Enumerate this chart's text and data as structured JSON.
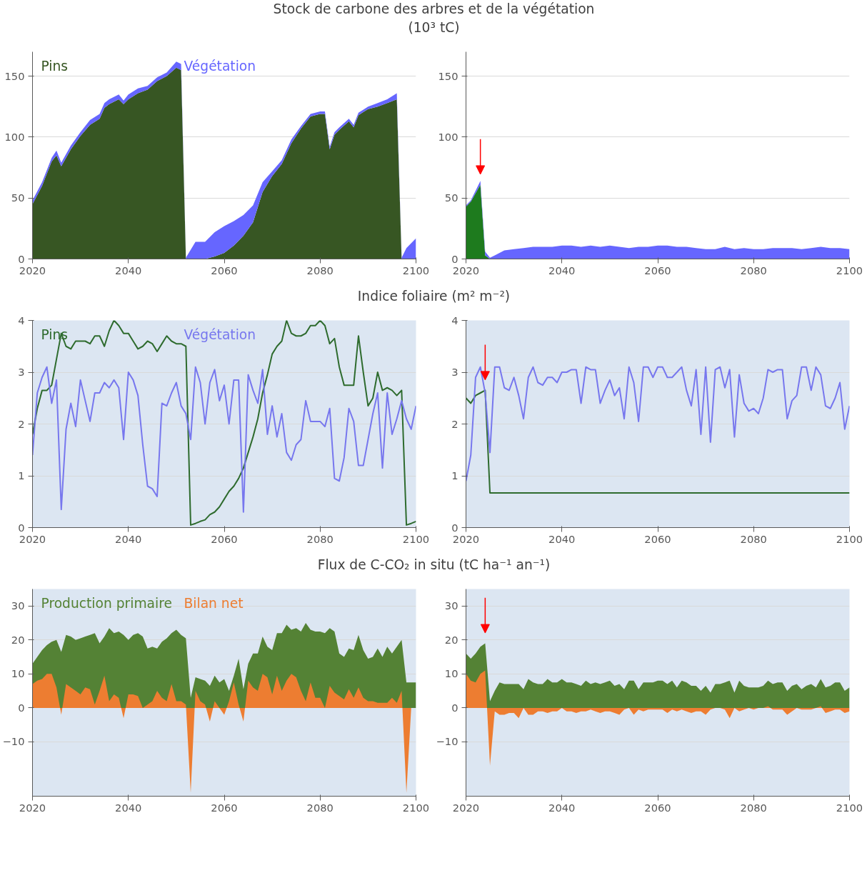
{
  "chart_data": [
    {
      "type": "area",
      "title": "Stock de carbone des arbres et de la végétation",
      "subtitle": "(10³ tC)",
      "stacked": true,
      "grid": "y",
      "xlim": [
        2020,
        2100
      ],
      "xticks": [
        2020,
        2040,
        2060,
        2080,
        2100
      ],
      "ylim": [
        0,
        170
      ],
      "yticks": [
        0,
        50,
        100,
        150
      ],
      "x": [
        2020,
        2022,
        2024,
        2025,
        2026,
        2028,
        2030,
        2032,
        2034,
        2035,
        2036,
        2038,
        2039,
        2040,
        2042,
        2044,
        2046,
        2048,
        2050,
        2051,
        2052,
        2054,
        2056,
        2058,
        2060,
        2062,
        2064,
        2066,
        2068,
        2070,
        2072,
        2074,
        2076,
        2078,
        2080,
        2081,
        2082,
        2083,
        2084,
        2086,
        2087,
        2088,
        2090,
        2092,
        2094,
        2096,
        2097,
        2098,
        2100
      ],
      "series": [
        {
          "name": "Pins",
          "color": "#375623",
          "values": [
            45,
            60,
            80,
            85,
            76,
            90,
            101,
            110,
            115,
            124,
            127,
            131,
            127,
            131,
            136,
            139,
            146,
            150,
            157,
            155,
            0,
            0,
            0,
            2,
            5,
            11,
            19,
            30,
            55,
            68,
            78,
            95,
            107,
            117,
            119,
            119,
            90,
            102,
            106,
            113,
            108,
            118,
            123,
            125,
            128,
            131,
            0,
            0,
            0
          ]
        },
        {
          "name": "Végétation",
          "color": "#6666ff",
          "values": [
            3,
            3,
            3,
            4,
            3,
            3,
            3,
            4,
            4,
            4,
            4,
            4,
            3,
            4,
            4,
            3,
            3,
            3,
            5,
            5,
            1,
            14,
            14,
            20,
            22,
            20,
            17,
            14,
            8,
            4,
            3,
            3,
            2,
            2,
            2,
            2,
            2,
            2,
            2,
            2,
            2,
            2,
            2,
            3,
            3,
            5,
            1,
            9,
            17
          ]
        }
      ]
    },
    {
      "type": "area",
      "stacked": true,
      "grid": "y",
      "xlim": [
        2020,
        2100
      ],
      "xticks": [
        2020,
        2040,
        2060,
        2080,
        2100
      ],
      "ylim": [
        0,
        170
      ],
      "yticks": [
        0,
        50,
        100,
        150
      ],
      "x": [
        2020,
        2021,
        2022,
        2023,
        2024,
        2025,
        2026,
        2028,
        2030,
        2032,
        2034,
        2036,
        2038,
        2040,
        2042,
        2044,
        2046,
        2048,
        2050,
        2052,
        2054,
        2056,
        2058,
        2060,
        2062,
        2064,
        2066,
        2068,
        2070,
        2072,
        2074,
        2076,
        2078,
        2080,
        2082,
        2084,
        2086,
        2088,
        2090,
        2092,
        2094,
        2096,
        2098,
        2100
      ],
      "series": [
        {
          "color": "#1e7b1e",
          "values": [
            43,
            47,
            54,
            61,
            3,
            0,
            0,
            0,
            0,
            0,
            0,
            0,
            0,
            0,
            0,
            0,
            0,
            0,
            0,
            0,
            0,
            0,
            0,
            0,
            0,
            0,
            0,
            0,
            0,
            0,
            0,
            0,
            0,
            0,
            0,
            0,
            0,
            0,
            0,
            0,
            0,
            0,
            0,
            0
          ]
        },
        {
          "color": "#6666ff",
          "values": [
            1,
            1,
            2,
            3,
            3,
            1,
            3,
            7,
            8,
            9,
            10,
            10,
            10,
            11,
            11,
            10,
            11,
            10,
            11,
            10,
            9,
            10,
            10,
            11,
            11,
            10,
            10,
            9,
            8,
            8,
            10,
            8,
            9,
            8,
            8,
            9,
            9,
            9,
            8,
            9,
            10,
            9,
            9,
            8
          ]
        }
      ]
    },
    {
      "type": "line",
      "title": "Indice foliaire (m² m⁻²)",
      "grid": "y",
      "xlim": [
        2020,
        2100
      ],
      "xticks": [
        2020,
        2040,
        2060,
        2080,
        2100
      ],
      "ylim": [
        0,
        4
      ],
      "yticks": [
        0,
        1,
        2,
        3,
        4
      ],
      "x": [
        2020,
        2021,
        2022,
        2023,
        2024,
        2025,
        2026,
        2027,
        2028,
        2029,
        2030,
        2031,
        2032,
        2033,
        2034,
        2035,
        2036,
        2037,
        2038,
        2039,
        2040,
        2041,
        2042,
        2043,
        2044,
        2045,
        2046,
        2047,
        2048,
        2049,
        2050,
        2051,
        2052,
        2053,
        2054,
        2055,
        2056,
        2057,
        2058,
        2059,
        2060,
        2061,
        2062,
        2063,
        2064,
        2065,
        2066,
        2067,
        2068,
        2069,
        2070,
        2071,
        2072,
        2073,
        2074,
        2075,
        2076,
        2077,
        2078,
        2079,
        2080,
        2081,
        2082,
        2083,
        2084,
        2085,
        2086,
        2087,
        2088,
        2089,
        2090,
        2091,
        2092,
        2093,
        2094,
        2095,
        2096,
        2097,
        2098,
        2099,
        2100
      ],
      "series": [
        {
          "name": "Pins",
          "color": "#2e6b2e",
          "values": [
            1.8,
            2.3,
            2.65,
            2.65,
            2.75,
            3.25,
            3.75,
            3.5,
            3.45,
            3.6,
            3.6,
            3.6,
            3.55,
            3.7,
            3.7,
            3.5,
            3.8,
            4.0,
            3.9,
            3.75,
            3.75,
            3.6,
            3.45,
            3.5,
            3.6,
            3.55,
            3.4,
            3.55,
            3.7,
            3.6,
            3.55,
            3.55,
            3.5,
            0.05,
            0.08,
            0.12,
            0.15,
            0.25,
            0.3,
            0.4,
            0.55,
            0.7,
            0.8,
            0.95,
            1.15,
            1.45,
            1.75,
            2.1,
            2.6,
            2.95,
            3.35,
            3.5,
            3.6,
            4.0,
            3.75,
            3.7,
            3.7,
            3.75,
            3.9,
            3.9,
            4.0,
            3.9,
            3.55,
            3.65,
            3.1,
            2.75,
            2.75,
            2.75,
            3.7,
            3.0,
            2.35,
            2.5,
            3.0,
            2.65,
            2.7,
            2.65,
            2.55,
            2.65,
            0.05,
            0.08,
            0.12
          ]
        },
        {
          "name": "Végétation",
          "color": "#7777ee",
          "values": [
            1.4,
            2.6,
            2.9,
            3.1,
            2.4,
            2.85,
            0.35,
            1.9,
            2.4,
            1.95,
            2.85,
            2.45,
            2.05,
            2.6,
            2.6,
            2.8,
            2.7,
            2.85,
            2.7,
            1.7,
            3.0,
            2.85,
            2.55,
            1.6,
            0.8,
            0.75,
            0.6,
            2.4,
            2.35,
            2.6,
            2.8,
            2.35,
            2.2,
            1.7,
            3.1,
            2.8,
            2.0,
            2.8,
            3.05,
            2.45,
            2.75,
            2.0,
            2.85,
            2.85,
            0.3,
            2.95,
            2.65,
            2.4,
            3.05,
            1.8,
            2.35,
            1.75,
            2.2,
            1.45,
            1.3,
            1.6,
            1.7,
            2.45,
            2.05,
            2.05,
            2.05,
            1.95,
            2.3,
            0.95,
            0.9,
            1.35,
            2.3,
            2.05,
            1.2,
            1.2,
            1.7,
            2.2,
            2.6,
            1.15,
            2.6,
            1.8,
            2.1,
            2.45,
            2.1,
            1.9,
            2.35
          ]
        }
      ]
    },
    {
      "type": "line",
      "grid": "y",
      "xlim": [
        2020,
        2100
      ],
      "xticks": [
        2020,
        2040,
        2060,
        2080,
        2100
      ],
      "ylim": [
        0,
        4
      ],
      "yticks": [
        0,
        1,
        2,
        3,
        4
      ],
      "x": [
        2020,
        2021,
        2022,
        2023,
        2024,
        2025,
        2026,
        2027,
        2028,
        2029,
        2030,
        2031,
        2032,
        2033,
        2034,
        2035,
        2036,
        2037,
        2038,
        2039,
        2040,
        2041,
        2042,
        2043,
        2044,
        2045,
        2046,
        2047,
        2048,
        2049,
        2050,
        2051,
        2052,
        2053,
        2054,
        2055,
        2056,
        2057,
        2058,
        2059,
        2060,
        2061,
        2062,
        2063,
        2064,
        2065,
        2066,
        2067,
        2068,
        2069,
        2070,
        2071,
        2072,
        2073,
        2074,
        2075,
        2076,
        2077,
        2078,
        2079,
        2080,
        2081,
        2082,
        2083,
        2084,
        2085,
        2086,
        2087,
        2088,
        2089,
        2090,
        2091,
        2092,
        2093,
        2094,
        2095,
        2096,
        2097,
        2098,
        2099,
        2100
      ],
      "series": [
        {
          "color": "#2e6b2e",
          "x": [
            2020,
            2021,
            2022,
            2023,
            2024,
            2025,
            2100
          ],
          "values": [
            2.5,
            2.4,
            2.55,
            2.6,
            2.65,
            0.67,
            0.67
          ]
        },
        {
          "color": "#7777ee",
          "values": [
            0.9,
            1.4,
            2.9,
            3.1,
            2.6,
            1.45,
            3.1,
            3.1,
            2.7,
            2.65,
            2.9,
            2.55,
            2.1,
            2.9,
            3.1,
            2.8,
            2.75,
            2.9,
            2.9,
            2.8,
            3.0,
            3.0,
            3.05,
            3.05,
            2.4,
            3.1,
            3.05,
            3.05,
            2.4,
            2.65,
            2.85,
            2.55,
            2.7,
            2.1,
            3.1,
            2.8,
            2.05,
            3.1,
            3.1,
            2.9,
            3.1,
            3.1,
            2.9,
            2.9,
            3.0,
            3.1,
            2.65,
            2.35,
            3.05,
            1.8,
            3.1,
            1.65,
            3.05,
            3.1,
            2.7,
            3.05,
            1.75,
            2.95,
            2.4,
            2.25,
            2.3,
            2.2,
            2.5,
            3.05,
            3.0,
            3.05,
            3.05,
            2.1,
            2.45,
            2.55,
            3.1,
            3.1,
            2.65,
            3.1,
            2.95,
            2.35,
            2.3,
            2.5,
            2.8,
            1.9,
            2.35
          ]
        }
      ]
    },
    {
      "type": "area",
      "title": "Flux de C-CO₂ in situ (tC ha⁻¹ an⁻¹)",
      "grid": "y",
      "xlim": [
        2020,
        2100
      ],
      "xticks": [
        2020,
        2040,
        2060,
        2080,
        2100
      ],
      "ylim": [
        -26,
        35
      ],
      "yticks": [
        -10,
        0,
        10,
        20,
        30
      ],
      "x": [
        2020,
        2021,
        2022,
        2023,
        2024,
        2025,
        2026,
        2027,
        2028,
        2029,
        2030,
        2031,
        2032,
        2033,
        2034,
        2035,
        2036,
        2037,
        2038,
        2039,
        2040,
        2041,
        2042,
        2043,
        2044,
        2045,
        2046,
        2047,
        2048,
        2049,
        2050,
        2051,
        2052,
        2053,
        2054,
        2055,
        2056,
        2057,
        2058,
        2059,
        2060,
        2061,
        2062,
        2063,
        2064,
        2065,
        2066,
        2067,
        2068,
        2069,
        2070,
        2071,
        2072,
        2073,
        2074,
        2075,
        2076,
        2077,
        2078,
        2079,
        2080,
        2081,
        2082,
        2083,
        2084,
        2085,
        2086,
        2087,
        2088,
        2089,
        2090,
        2091,
        2092,
        2093,
        2094,
        2095,
        2096,
        2097,
        2098,
        2099,
        2100
      ],
      "series": [
        {
          "name": "Production primaire",
          "color": "#548235",
          "values": [
            13,
            15,
            17,
            18.5,
            19.5,
            20,
            16.5,
            21.5,
            21,
            20,
            20.5,
            21,
            21.5,
            22,
            19,
            21,
            23.5,
            22,
            22.5,
            21.5,
            20,
            21.5,
            22,
            21,
            17.5,
            18,
            17.5,
            19.5,
            20.5,
            22,
            23,
            21.5,
            20.5,
            3,
            9,
            8.5,
            8,
            6.5,
            9.5,
            7.5,
            8.5,
            5,
            9.5,
            14.5,
            5.5,
            13,
            16,
            16,
            21,
            18,
            17,
            22,
            22,
            24.5,
            23,
            23.5,
            22.5,
            25,
            23,
            22.5,
            22.5,
            22,
            23.5,
            22.5,
            16,
            15,
            17.5,
            17,
            21.5,
            17,
            14.5,
            15,
            17.5,
            15,
            18,
            16,
            18,
            20,
            7.5,
            7.5,
            7.5
          ]
        },
        {
          "name": "Bilan net",
          "color": "#ed7d31",
          "values": [
            7,
            8,
            8.5,
            10,
            10,
            6,
            -2,
            7,
            6,
            5,
            4,
            6,
            5.5,
            1,
            5,
            9.5,
            2,
            4,
            3,
            -3,
            4,
            4,
            3.5,
            0,
            1,
            2,
            5,
            3,
            2,
            7,
            2,
            2,
            1,
            -25,
            5,
            2,
            1,
            -4,
            2,
            0,
            -2,
            2,
            7.5,
            1,
            -4,
            8,
            6,
            5,
            10,
            9,
            4,
            9.5,
            5,
            8,
            10,
            9,
            5,
            2,
            7.5,
            3,
            3,
            0,
            6.5,
            4.5,
            3.5,
            2.5,
            5.5,
            3,
            6,
            3,
            2,
            2,
            1.5,
            1.5,
            1.5,
            3,
            1.5,
            5,
            -25,
            0,
            0
          ]
        }
      ]
    },
    {
      "type": "area",
      "grid": "y",
      "xlim": [
        2020,
        2100
      ],
      "xticks": [
        2020,
        2040,
        2060,
        2080,
        2100
      ],
      "ylim": [
        -26,
        35
      ],
      "yticks": [
        -10,
        0,
        10,
        20,
        30
      ],
      "x": [
        2020,
        2021,
        2022,
        2023,
        2024,
        2025,
        2026,
        2027,
        2028,
        2029,
        2030,
        2031,
        2032,
        2033,
        2034,
        2035,
        2036,
        2037,
        2038,
        2039,
        2040,
        2041,
        2042,
        2043,
        2044,
        2045,
        2046,
        2047,
        2048,
        2049,
        2050,
        2051,
        2052,
        2053,
        2054,
        2055,
        2056,
        2057,
        2058,
        2059,
        2060,
        2061,
        2062,
        2063,
        2064,
        2065,
        2066,
        2067,
        2068,
        2069,
        2070,
        2071,
        2072,
        2073,
        2074,
        2075,
        2076,
        2077,
        2078,
        2079,
        2080,
        2081,
        2082,
        2083,
        2084,
        2085,
        2086,
        2087,
        2088,
        2089,
        2090,
        2091,
        2092,
        2093,
        2094,
        2095,
        2096,
        2097,
        2098,
        2099,
        2100
      ],
      "series": [
        {
          "color": "#548235",
          "values": [
            16,
            14.5,
            16,
            18,
            19,
            2,
            5,
            7.5,
            7,
            7,
            7,
            7,
            5.5,
            8.5,
            7.5,
            7,
            7,
            8.5,
            7.5,
            7.5,
            8.5,
            7.5,
            7.5,
            7,
            6.5,
            8,
            7,
            7.5,
            7,
            7.5,
            8,
            6.5,
            7,
            5.5,
            8,
            8,
            5.5,
            7.5,
            7.5,
            7.5,
            8,
            8,
            7,
            8,
            6,
            8,
            7.5,
            6.5,
            6.5,
            5,
            6.5,
            4.5,
            7,
            7,
            7.5,
            8,
            4.5,
            8,
            6.5,
            6,
            6,
            6,
            6.5,
            8,
            7,
            7.5,
            7.5,
            5,
            6.5,
            7,
            5.5,
            6.5,
            7,
            6,
            8.5,
            6,
            6.5,
            7.5,
            7.5,
            5,
            6
          ]
        },
        {
          "color": "#ed7d31",
          "values": [
            10,
            8,
            7.5,
            10,
            11,
            -17,
            -1,
            -2,
            -2,
            -1.5,
            -1.5,
            -3,
            0,
            -2,
            -2,
            -1,
            -1,
            -1.5,
            -1,
            -1,
            0,
            -1,
            -1,
            -1.5,
            -1,
            -1,
            -0.5,
            -1,
            -1.5,
            -1,
            -1,
            -1.5,
            -2,
            -0.5,
            0,
            -2,
            -0.5,
            -1,
            -0.5,
            -0.5,
            -0.5,
            -0.5,
            -1.5,
            -0.5,
            -1,
            -0.5,
            -1,
            -1.5,
            -1,
            -1,
            -2,
            -0.5,
            0,
            0,
            -0.5,
            -3,
            0,
            -1,
            -0.5,
            0,
            -0.5,
            0,
            0,
            0.5,
            -0.5,
            -0.5,
            -0.5,
            -2,
            -1,
            0,
            -0.5,
            -0.5,
            -0.5,
            0,
            0.5,
            -1.5,
            -1,
            -0.5,
            -0.5,
            -1.5,
            -1
          ]
        }
      ]
    }
  ]
}
